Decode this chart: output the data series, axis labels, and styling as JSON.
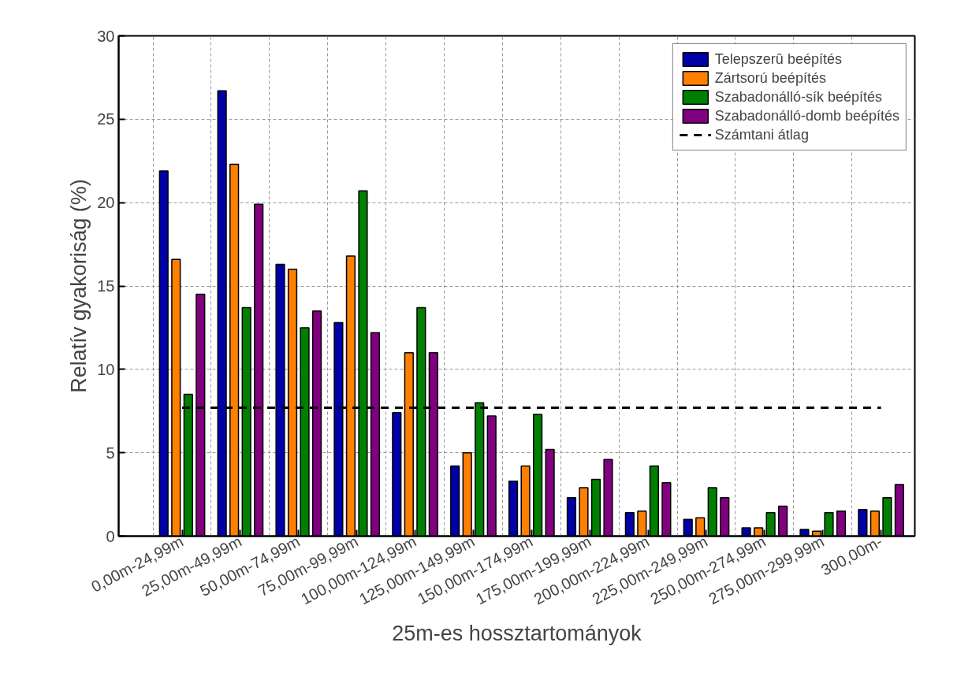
{
  "chart_data": {
    "type": "bar",
    "xlabel": "25m-es hossztartományok",
    "ylabel": "Relatív gyakoriság (%)",
    "categories": [
      "0,00m-24,99m",
      "25,00m-49,99m",
      "50,00m-74,99m",
      "75,00m-99,99m",
      "100,00m-124,99m",
      "125,00m-149,99m",
      "150,00m-174,99m",
      "175,00m-199,99m",
      "200,00m-224,99m",
      "225,00m-249,99m",
      "250,00m-274,99m",
      "275,00m-299,99m",
      "300,00m-"
    ],
    "series": [
      {
        "name": "Telepszerû beépítés",
        "color": "#0000a8",
        "values": [
          21.9,
          26.7,
          16.3,
          12.8,
          7.4,
          4.2,
          3.3,
          2.3,
          1.4,
          1.0,
          0.5,
          0.4,
          1.6
        ]
      },
      {
        "name": "Zártsorú beépítés",
        "color": "#ff8000",
        "values": [
          16.6,
          22.3,
          16.0,
          16.8,
          11.0,
          5.0,
          4.2,
          2.9,
          1.5,
          1.1,
          0.5,
          0.3,
          1.5
        ]
      },
      {
        "name": "Szabadonálló-sík beépítés",
        "color": "#008000",
        "values": [
          8.5,
          13.7,
          12.5,
          20.7,
          13.7,
          8.0,
          7.3,
          3.4,
          4.2,
          2.9,
          1.4,
          1.4,
          2.3
        ]
      },
      {
        "name": "Szabadonálló-domb beépítés",
        "color": "#800080",
        "values": [
          14.5,
          19.9,
          13.5,
          12.2,
          11.0,
          7.2,
          5.2,
          4.6,
          3.2,
          2.3,
          1.8,
          1.5,
          3.1
        ]
      }
    ],
    "ref_lines": [
      {
        "axis": "y",
        "value": 7.7,
        "label": "Számtani átlag",
        "color": "#000000",
        "line_style": "dashed"
      }
    ],
    "ylim": [
      0,
      30
    ],
    "yticks": [
      0,
      5,
      10,
      15,
      20,
      25,
      30
    ],
    "grid": true,
    "legend": "top right"
  }
}
